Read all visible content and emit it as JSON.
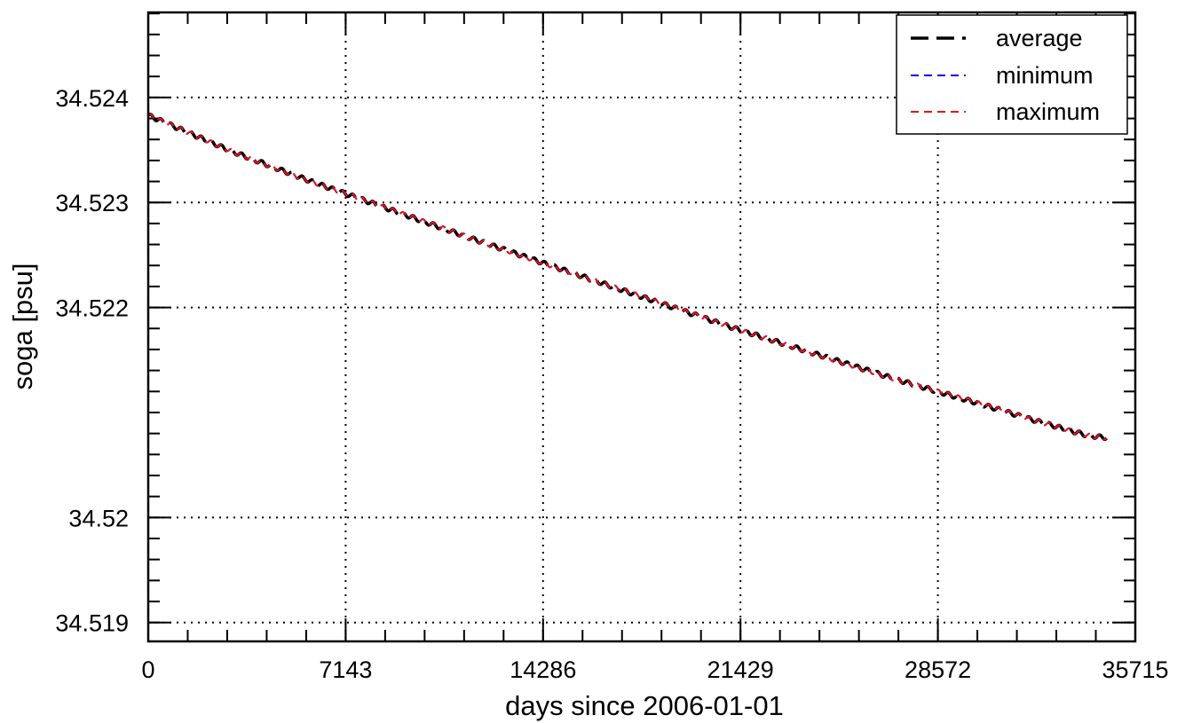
{
  "chart_data": {
    "type": "line",
    "title": "",
    "xlabel": "days since 2006-01-01",
    "ylabel": "soga [psu]",
    "xlim": [
      0,
      35715
    ],
    "ylim": [
      34.51882,
      34.52481
    ],
    "x_ticks": [
      0,
      7143,
      14286,
      21429,
      28572,
      35715
    ],
    "x_tick_labels": [
      "0",
      "7143",
      "14286",
      "21429",
      "28572",
      "35715"
    ],
    "y_ticks": [
      34.519,
      34.52,
      34.522,
      34.523,
      34.524
    ],
    "y_tick_labels": [
      "34.519",
      "34.52",
      "34.522",
      "34.523",
      "34.524"
    ],
    "x_minor_step": 1428.6,
    "y_minor_step": 0.0002,
    "grid": true,
    "legend_position": "top-right",
    "x": [
      0,
      3000,
      6000,
      9000,
      12000,
      15000,
      18000,
      21000,
      24000,
      27000,
      30000,
      32000,
      34000,
      34700
    ],
    "series": [
      {
        "name": "average",
        "color": "#000000",
        "style": "long-dash",
        "values": [
          34.52383,
          34.52349,
          34.52319,
          34.52291,
          34.52263,
          34.52236,
          34.52209,
          34.52182,
          34.52157,
          34.52132,
          34.52109,
          34.52093,
          34.52078,
          34.52076
        ]
      },
      {
        "name": "minimum",
        "color": "#0000ee",
        "style": "short-dash",
        "values": [
          34.52383,
          34.52349,
          34.52319,
          34.52291,
          34.52263,
          34.52236,
          34.52209,
          34.52182,
          34.52157,
          34.52132,
          34.52109,
          34.52093,
          34.52078,
          34.52076
        ]
      },
      {
        "name": "maximum",
        "color": "#ee1111",
        "style": "short-dash",
        "values": [
          34.52383,
          34.52349,
          34.52319,
          34.52291,
          34.52263,
          34.52236,
          34.52209,
          34.52182,
          34.52157,
          34.52132,
          34.52109,
          34.52093,
          34.52078,
          34.52076
        ]
      }
    ],
    "seasonal_amplitude": 2e-05,
    "seasonal_period_days": 365.25
  }
}
